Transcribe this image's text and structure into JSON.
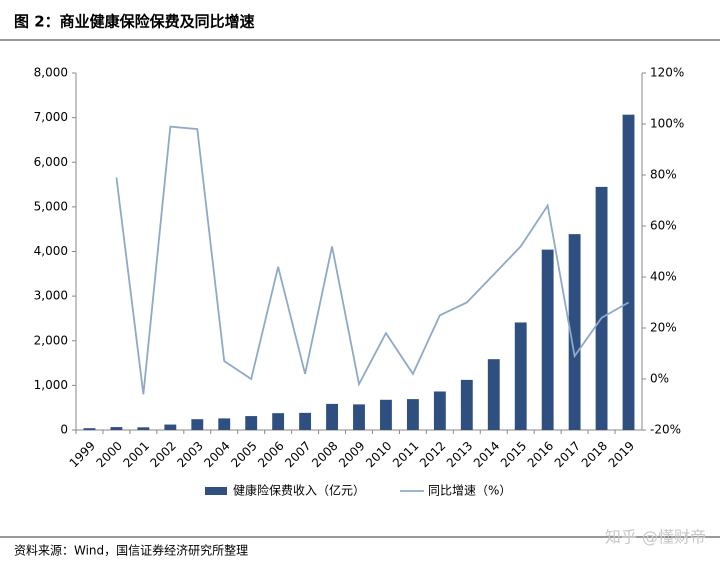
{
  "chart_data": {
    "type": "bar",
    "title": "图 2：商业健康保险保费及同比增速",
    "source": "资料来源：Wind，国信证券经济研究所整理",
    "watermark": "知乎 @懂财帝",
    "categories": [
      "1999",
      "2000",
      "2001",
      "2002",
      "2003",
      "2004",
      "2005",
      "2006",
      "2007",
      "2008",
      "2009",
      "2010",
      "2011",
      "2012",
      "2013",
      "2014",
      "2015",
      "2016",
      "2017",
      "2018",
      "2019"
    ],
    "series": [
      {
        "name": "健康险保费收入（亿元）",
        "type": "bar",
        "color": "#2f4f80",
        "values": [
          40,
          65,
          60,
          122,
          242,
          260,
          312,
          377,
          384,
          585,
          574,
          677,
          692,
          863,
          1123,
          1587,
          2410,
          4042,
          4389,
          5448,
          7066
        ]
      },
      {
        "name": "同比增速（%）",
        "type": "line",
        "axis": "y2",
        "color": "#8fa9c8",
        "values": [
          null,
          79,
          -6,
          99,
          98,
          7,
          0,
          44,
          2,
          52,
          -2,
          18,
          2,
          25,
          30,
          41,
          52,
          68,
          9,
          24,
          30
        ]
      }
    ],
    "ylim": [
      0,
      8000
    ],
    "yticks": [
      0,
      {
        "value": 1000,
        "label": "1,000"
      },
      {
        "value": 2000,
        "label": "2,000"
      },
      {
        "value": 3000,
        "label": "3,000"
      },
      {
        "value": 4000,
        "label": "4,000"
      },
      {
        "value": 5000,
        "label": "5,000"
      },
      {
        "value": 6000,
        "label": "6,000"
      },
      {
        "value": 7000,
        "label": "7,000"
      },
      {
        "value": 8000,
        "label": "8,000"
      }
    ],
    "y2lim": [
      -20,
      120
    ],
    "y2ticks": [
      {
        "value": -20,
        "label": "-20%"
      },
      {
        "value": 0,
        "label": "0%"
      },
      {
        "value": 20,
        "label": "20%"
      },
      {
        "value": 40,
        "label": "40%"
      },
      {
        "value": 60,
        "label": "60%"
      },
      {
        "value": 80,
        "label": "80%"
      },
      {
        "value": 100,
        "label": "100%"
      },
      {
        "value": 120,
        "label": "120%"
      }
    ]
  }
}
